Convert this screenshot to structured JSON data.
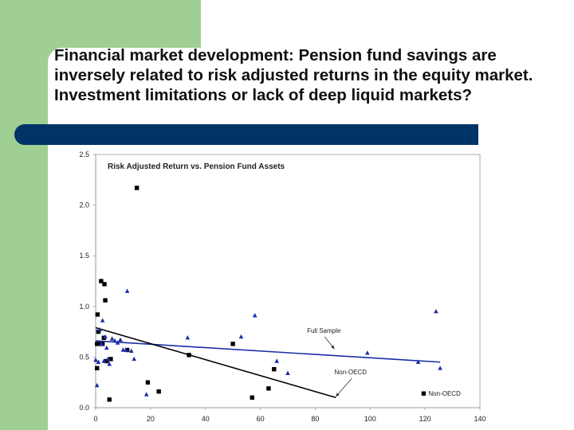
{
  "slide": {
    "title": "Financial market development: Pension fund savings are inversely related to risk adjusted returns in the equity market. Investment limitations or lack of deep liquid markets?",
    "colors": {
      "accent_green": "#9fcf93",
      "navy": "#003366"
    }
  },
  "chart_data": {
    "type": "scatter",
    "title": "Risk Adjusted Return vs. Pension Fund Assets",
    "xlabel": "",
    "ylabel": "",
    "xlim": [
      0,
      140
    ],
    "ylim": [
      0.0,
      2.5
    ],
    "x_ticks": [
      "0",
      "20",
      "40",
      "60",
      "80",
      "100",
      "120",
      "140"
    ],
    "y_ticks": [
      "0.0",
      "0.5",
      "1.0",
      "1.5",
      "2.0",
      "2.5"
    ],
    "grid": false,
    "legend": {
      "placement": "bottom-right",
      "label": "Non-OECD"
    },
    "series": [
      {
        "name": "Non-OECD",
        "marker": "square",
        "color": "#000000",
        "points": [
          [
            0.5,
            0.39
          ],
          [
            0.5,
            0.63
          ],
          [
            0.7,
            0.92
          ],
          [
            1,
            0.75
          ],
          [
            1.5,
            0.63
          ],
          [
            2,
            1.25
          ],
          [
            2.5,
            0.63
          ],
          [
            3,
            0.69
          ],
          [
            3.2,
            1.22
          ],
          [
            3.5,
            1.06
          ],
          [
            4,
            0.46
          ],
          [
            5,
            0.08
          ],
          [
            5.5,
            0.48
          ],
          [
            11.5,
            0.57
          ],
          [
            15,
            2.17
          ],
          [
            19,
            0.25
          ],
          [
            23,
            0.16
          ],
          [
            34,
            0.52
          ],
          [
            50,
            0.63
          ],
          [
            57,
            0.1
          ],
          [
            63,
            0.19
          ],
          [
            65,
            0.38
          ]
        ]
      },
      {
        "marker": "triangle",
        "color": "#1a2ea8",
        "points": [
          [
            0,
            0.47
          ],
          [
            0.5,
            0.22
          ],
          [
            1,
            0.45
          ],
          [
            1.5,
            0.77
          ],
          [
            2,
            0.63
          ],
          [
            2.5,
            0.86
          ],
          [
            3,
            0.46
          ],
          [
            3.5,
            0.7
          ],
          [
            4,
            0.59
          ],
          [
            4.5,
            0.48
          ],
          [
            5,
            0.43
          ],
          [
            6,
            0.68
          ],
          [
            7,
            0.66
          ],
          [
            8,
            0.64
          ],
          [
            9,
            0.67
          ],
          [
            10,
            0.57
          ],
          [
            11,
            0.57
          ],
          [
            11.5,
            1.15
          ],
          [
            13,
            0.56
          ],
          [
            14,
            0.48
          ],
          [
            18.5,
            0.13
          ],
          [
            33.5,
            0.69
          ],
          [
            53,
            0.7
          ],
          [
            58,
            0.91
          ],
          [
            66,
            0.46
          ],
          [
            70,
            0.34
          ],
          [
            99,
            0.54
          ],
          [
            117.5,
            0.45
          ],
          [
            124,
            0.95
          ],
          [
            125.5,
            0.39
          ]
        ]
      }
    ],
    "fit_lines": [
      {
        "points": [
          [
            0,
            0.66
          ],
          [
            125.5,
            0.45
          ]
        ],
        "color": "#1a2ea8"
      },
      {
        "points": [
          [
            0,
            0.79
          ],
          [
            87.5,
            0.1
          ]
        ],
        "color": "#000000"
      }
    ],
    "annotations": [
      {
        "text": "Full Sample",
        "at": [
          77,
          0.74
        ],
        "arrow_to": [
          87,
          0.58
        ]
      },
      {
        "text": "Non-OECD",
        "at": [
          87,
          0.33
        ],
        "arrow_to": [
          87.5,
          0.11
        ]
      }
    ]
  }
}
